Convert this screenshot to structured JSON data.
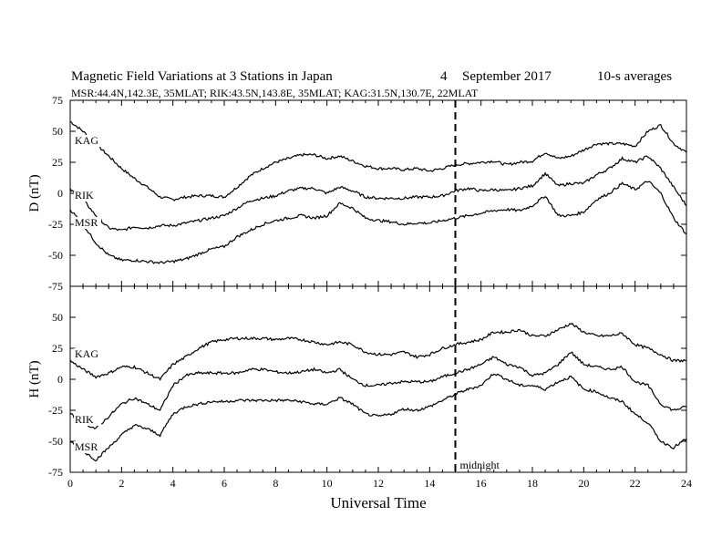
{
  "header": {
    "title": "Magnetic Field Variations at 3 Stations in Japan",
    "day": "4",
    "month_year": "September 2017",
    "averaging": "10-s averages",
    "stations_line": "MSR:44.4N,142.3E, 35MLAT;   RIK:43.5N,143.8E, 35MLAT;   KAG:31.5N,130.7E, 22MLAT"
  },
  "chart_data": [
    {
      "type": "line",
      "panel": "top",
      "ylabel": "D (nT)",
      "xlim": [
        0,
        24
      ],
      "ylim": [
        -75,
        75
      ],
      "yticks": [
        -75,
        -50,
        -25,
        0,
        25,
        50,
        75
      ],
      "ytick_labels": [
        "-75",
        "-50",
        "-25",
        "0",
        "25",
        "50",
        "75"
      ],
      "x": [
        0,
        0.5,
        1,
        1.5,
        2,
        2.5,
        3,
        3.5,
        4,
        4.5,
        5,
        5.5,
        6,
        6.5,
        7,
        7.5,
        8,
        8.5,
        9,
        9.5,
        10,
        10.5,
        11,
        11.5,
        12,
        12.5,
        13,
        13.5,
        14,
        14.5,
        15,
        15.5,
        16,
        16.5,
        17,
        17.5,
        18,
        18.5,
        19,
        19.5,
        20,
        20.5,
        21,
        21.5,
        22,
        22.5,
        23,
        23.5,
        24
      ],
      "series": [
        {
          "name": "KAG",
          "values": [
            58,
            50,
            40,
            30,
            20,
            12,
            5,
            -3,
            -5,
            -3,
            -2,
            -2,
            -3,
            5,
            14,
            20,
            25,
            28,
            31,
            31,
            28,
            30,
            26,
            22,
            20,
            20,
            19,
            20,
            18,
            20,
            23,
            24,
            25,
            26,
            23,
            25,
            26,
            33,
            28,
            30,
            35,
            40,
            40,
            40,
            38,
            50,
            55,
            40,
            33
          ]
        },
        {
          "name": "RIK",
          "values": [
            3,
            -5,
            -18,
            -28,
            -30,
            -27,
            -28,
            -26,
            -26,
            -24,
            -22,
            -20,
            -18,
            -12,
            -6,
            -4,
            -2,
            2,
            4,
            4,
            0,
            5,
            2,
            -3,
            -4,
            -4,
            -4,
            -3,
            -3,
            -2,
            2,
            4,
            2,
            3,
            2,
            4,
            6,
            16,
            6,
            8,
            8,
            15,
            20,
            28,
            25,
            30,
            20,
            5,
            -10
          ]
        },
        {
          "name": "MSR",
          "values": [
            -13,
            -25,
            -40,
            -50,
            -54,
            -54,
            -55,
            -56,
            -55,
            -53,
            -49,
            -45,
            -43,
            -35,
            -30,
            -25,
            -22,
            -20,
            -18,
            -20,
            -18,
            -8,
            -12,
            -20,
            -22,
            -23,
            -25,
            -24,
            -24,
            -22,
            -20,
            -18,
            -16,
            -14,
            -13,
            -14,
            -10,
            -2,
            -18,
            -18,
            -15,
            -5,
            0,
            8,
            3,
            10,
            0,
            -20,
            -33
          ]
        }
      ],
      "annotations": [
        {
          "x": 15,
          "style": "dashed"
        }
      ]
    },
    {
      "type": "line",
      "panel": "bottom",
      "ylabel": "H (nT)",
      "xlabel": "Universal Time",
      "xlim": [
        0,
        24
      ],
      "ylim": [
        -75,
        75
      ],
      "xticks": [
        0,
        2,
        4,
        6,
        8,
        10,
        12,
        14,
        16,
        18,
        20,
        22,
        24
      ],
      "xtick_labels": [
        "0",
        "2",
        "4",
        "6",
        "8",
        "10",
        "12",
        "14",
        "16",
        "18",
        "20",
        "22",
        "24"
      ],
      "yticks": [
        -75,
        -50,
        -25,
        0,
        25,
        50
      ],
      "ytick_labels": [
        "-75",
        "-50",
        "-25",
        "0",
        "25",
        "50"
      ],
      "x": [
        0,
        0.5,
        1,
        1.5,
        2,
        2.5,
        3,
        3.5,
        4,
        4.5,
        5,
        5.5,
        6,
        6.5,
        7,
        7.5,
        8,
        8.5,
        9,
        9.5,
        10,
        10.5,
        11,
        11.5,
        12,
        12.5,
        13,
        13.5,
        14,
        14.5,
        15,
        15.5,
        16,
        16.5,
        17,
        17.5,
        18,
        18.5,
        19,
        19.5,
        20,
        20.5,
        21,
        21.5,
        22,
        22.5,
        23,
        23.5,
        24
      ],
      "series": [
        {
          "name": "KAG",
          "values": [
            15,
            8,
            2,
            5,
            10,
            10,
            5,
            0,
            12,
            18,
            25,
            30,
            32,
            33,
            33,
            33,
            32,
            33,
            32,
            30,
            28,
            30,
            28,
            22,
            20,
            20,
            22,
            18,
            20,
            25,
            28,
            30,
            32,
            38,
            38,
            40,
            35,
            35,
            40,
            45,
            38,
            35,
            35,
            37,
            28,
            25,
            20,
            15,
            15
          ]
        },
        {
          "name": "RIK",
          "values": [
            -28,
            -35,
            -40,
            -30,
            -20,
            -15,
            -20,
            -25,
            -5,
            3,
            5,
            5,
            5,
            5,
            8,
            8,
            6,
            5,
            6,
            8,
            5,
            8,
            0,
            -5,
            -5,
            -3,
            -2,
            -2,
            -2,
            2,
            5,
            8,
            12,
            18,
            12,
            10,
            3,
            5,
            12,
            22,
            12,
            10,
            8,
            10,
            -2,
            -5,
            -20,
            -25,
            -22
          ]
        },
        {
          "name": "MSR",
          "values": [
            -50,
            -58,
            -65,
            -55,
            -45,
            -37,
            -40,
            -45,
            -28,
            -22,
            -20,
            -18,
            -18,
            -17,
            -17,
            -17,
            -17,
            -17,
            -18,
            -20,
            -20,
            -15,
            -20,
            -28,
            -30,
            -28,
            -24,
            -25,
            -22,
            -17,
            -12,
            -8,
            -5,
            5,
            0,
            -5,
            -5,
            -8,
            -2,
            2,
            -8,
            -10,
            -15,
            -18,
            -28,
            -35,
            -50,
            -55,
            -48
          ]
        }
      ],
      "annotations": [
        {
          "x": 15,
          "style": "dashed",
          "label": "midnight"
        }
      ]
    }
  ]
}
